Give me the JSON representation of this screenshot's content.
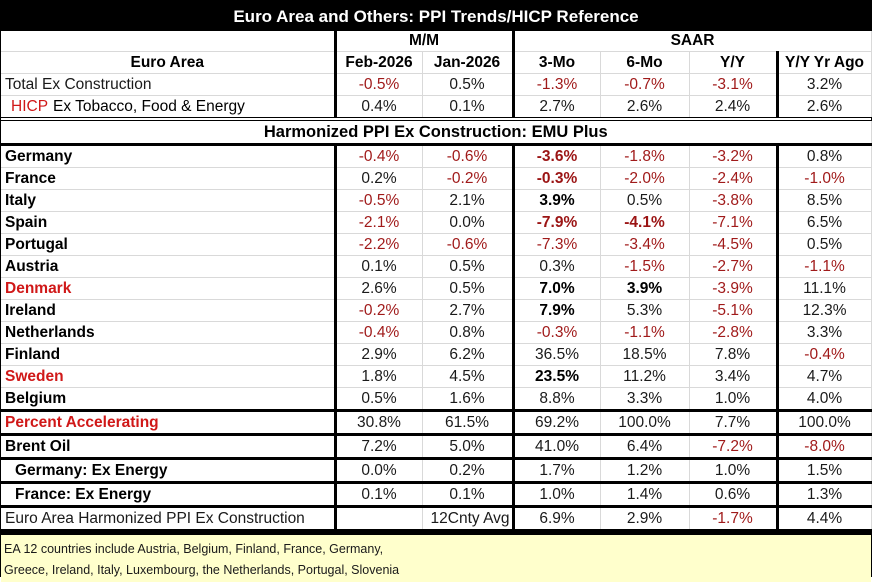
{
  "title": "Euro Area and Others: PPI Trends/HICP Reference",
  "group_headers": {
    "mm": "M/M",
    "saar": "SAAR"
  },
  "columns": [
    "Euro Area",
    "Feb-2026",
    "Jan-2026",
    "3-Mo",
    "6-Mo",
    "Y/Y",
    "Y/Y Yr Ago"
  ],
  "euro_area_rows": [
    {
      "label": "Total Ex Construction",
      "values": [
        "-0.5%",
        "0.5%",
        "-1.3%",
        "-0.7%",
        "-3.1%",
        "3.2%"
      ]
    },
    {
      "label_prefix": "HICP",
      "label": "Ex Tobacco, Food & Energy",
      "values": [
        "0.4%",
        "0.1%",
        "2.7%",
        "2.6%",
        "2.4%",
        "2.6%"
      ]
    }
  ],
  "section_title": "Harmonized PPI Ex Construction: EMU Plus",
  "countries": [
    {
      "label": "Germany",
      "values": [
        "-0.4%",
        "-0.6%",
        "-3.6%",
        "-1.8%",
        "-3.2%",
        "0.8%"
      ]
    },
    {
      "label": "France",
      "values": [
        "0.2%",
        "-0.2%",
        "-0.3%",
        "-2.0%",
        "-2.4%",
        "-1.0%"
      ]
    },
    {
      "label": "Italy",
      "values": [
        "-0.5%",
        "2.1%",
        "3.9%",
        "0.5%",
        "-3.8%",
        "8.5%"
      ]
    },
    {
      "label": "Spain",
      "values": [
        "-2.1%",
        "0.0%",
        "-7.9%",
        "-4.1%",
        "-7.1%",
        "6.5%"
      ]
    },
    {
      "label": "Portugal",
      "values": [
        "-2.2%",
        "-0.6%",
        "-7.3%",
        "-3.4%",
        "-4.5%",
        "0.5%"
      ]
    },
    {
      "label": "Austria",
      "values": [
        "0.1%",
        "0.5%",
        "0.3%",
        "-1.5%",
        "-2.7%",
        "-1.1%"
      ]
    },
    {
      "label": "Denmark",
      "values": [
        "2.6%",
        "0.5%",
        "7.0%",
        "3.9%",
        "-3.9%",
        "11.1%"
      ]
    },
    {
      "label": "Ireland",
      "values": [
        "-0.2%",
        "2.7%",
        "7.9%",
        "5.3%",
        "-5.1%",
        "12.3%"
      ]
    },
    {
      "label": "Netherlands",
      "values": [
        "-0.4%",
        "0.8%",
        "-0.3%",
        "-1.1%",
        "-2.8%",
        "3.3%"
      ]
    },
    {
      "label": "Finland",
      "values": [
        "2.9%",
        "6.2%",
        "36.5%",
        "18.5%",
        "7.8%",
        "-0.4%"
      ]
    },
    {
      "label": "Sweden",
      "values": [
        "1.8%",
        "4.5%",
        "23.5%",
        "11.2%",
        "3.4%",
        "4.7%"
      ]
    },
    {
      "label": "Belgium",
      "values": [
        "0.5%",
        "1.6%",
        "8.8%",
        "3.3%",
        "1.0%",
        "4.0%"
      ]
    }
  ],
  "summary_rows": [
    {
      "label": "Percent Accelerating",
      "values": [
        "30.8%",
        "61.5%",
        "69.2%",
        "100.0%",
        "7.7%",
        "100.0%"
      ]
    },
    {
      "label": "Brent Oil",
      "values": [
        "7.2%",
        "5.0%",
        "41.0%",
        "6.4%",
        "-7.2%",
        "-8.0%"
      ]
    },
    {
      "label": "Germany: Ex Energy",
      "values": [
        "0.0%",
        "0.2%",
        "1.7%",
        "1.2%",
        "1.0%",
        "1.5%"
      ]
    },
    {
      "label": "France: Ex Energy",
      "values": [
        "0.1%",
        "0.1%",
        "1.0%",
        "1.4%",
        "0.6%",
        "1.3%"
      ]
    },
    {
      "label": "Euro Area Harmonized PPI Ex Construction",
      "values": [
        "",
        "12Cnty Avg",
        "6.9%",
        "2.9%",
        "-1.7%",
        "4.4%"
      ]
    }
  ],
  "footnote": {
    "line1": "EA 12 countries include Austria, Belgium, Finland, France, Germany,",
    "line2": "Greece, Ireland, Italy, Luxembourg, the Netherlands, Portugal, Slovenia"
  },
  "colors": {
    "negative": "#a01a1a",
    "highlight_label": "#d01818",
    "footnote_bg": "#ffffcc",
    "title_bg": "#000000"
  }
}
